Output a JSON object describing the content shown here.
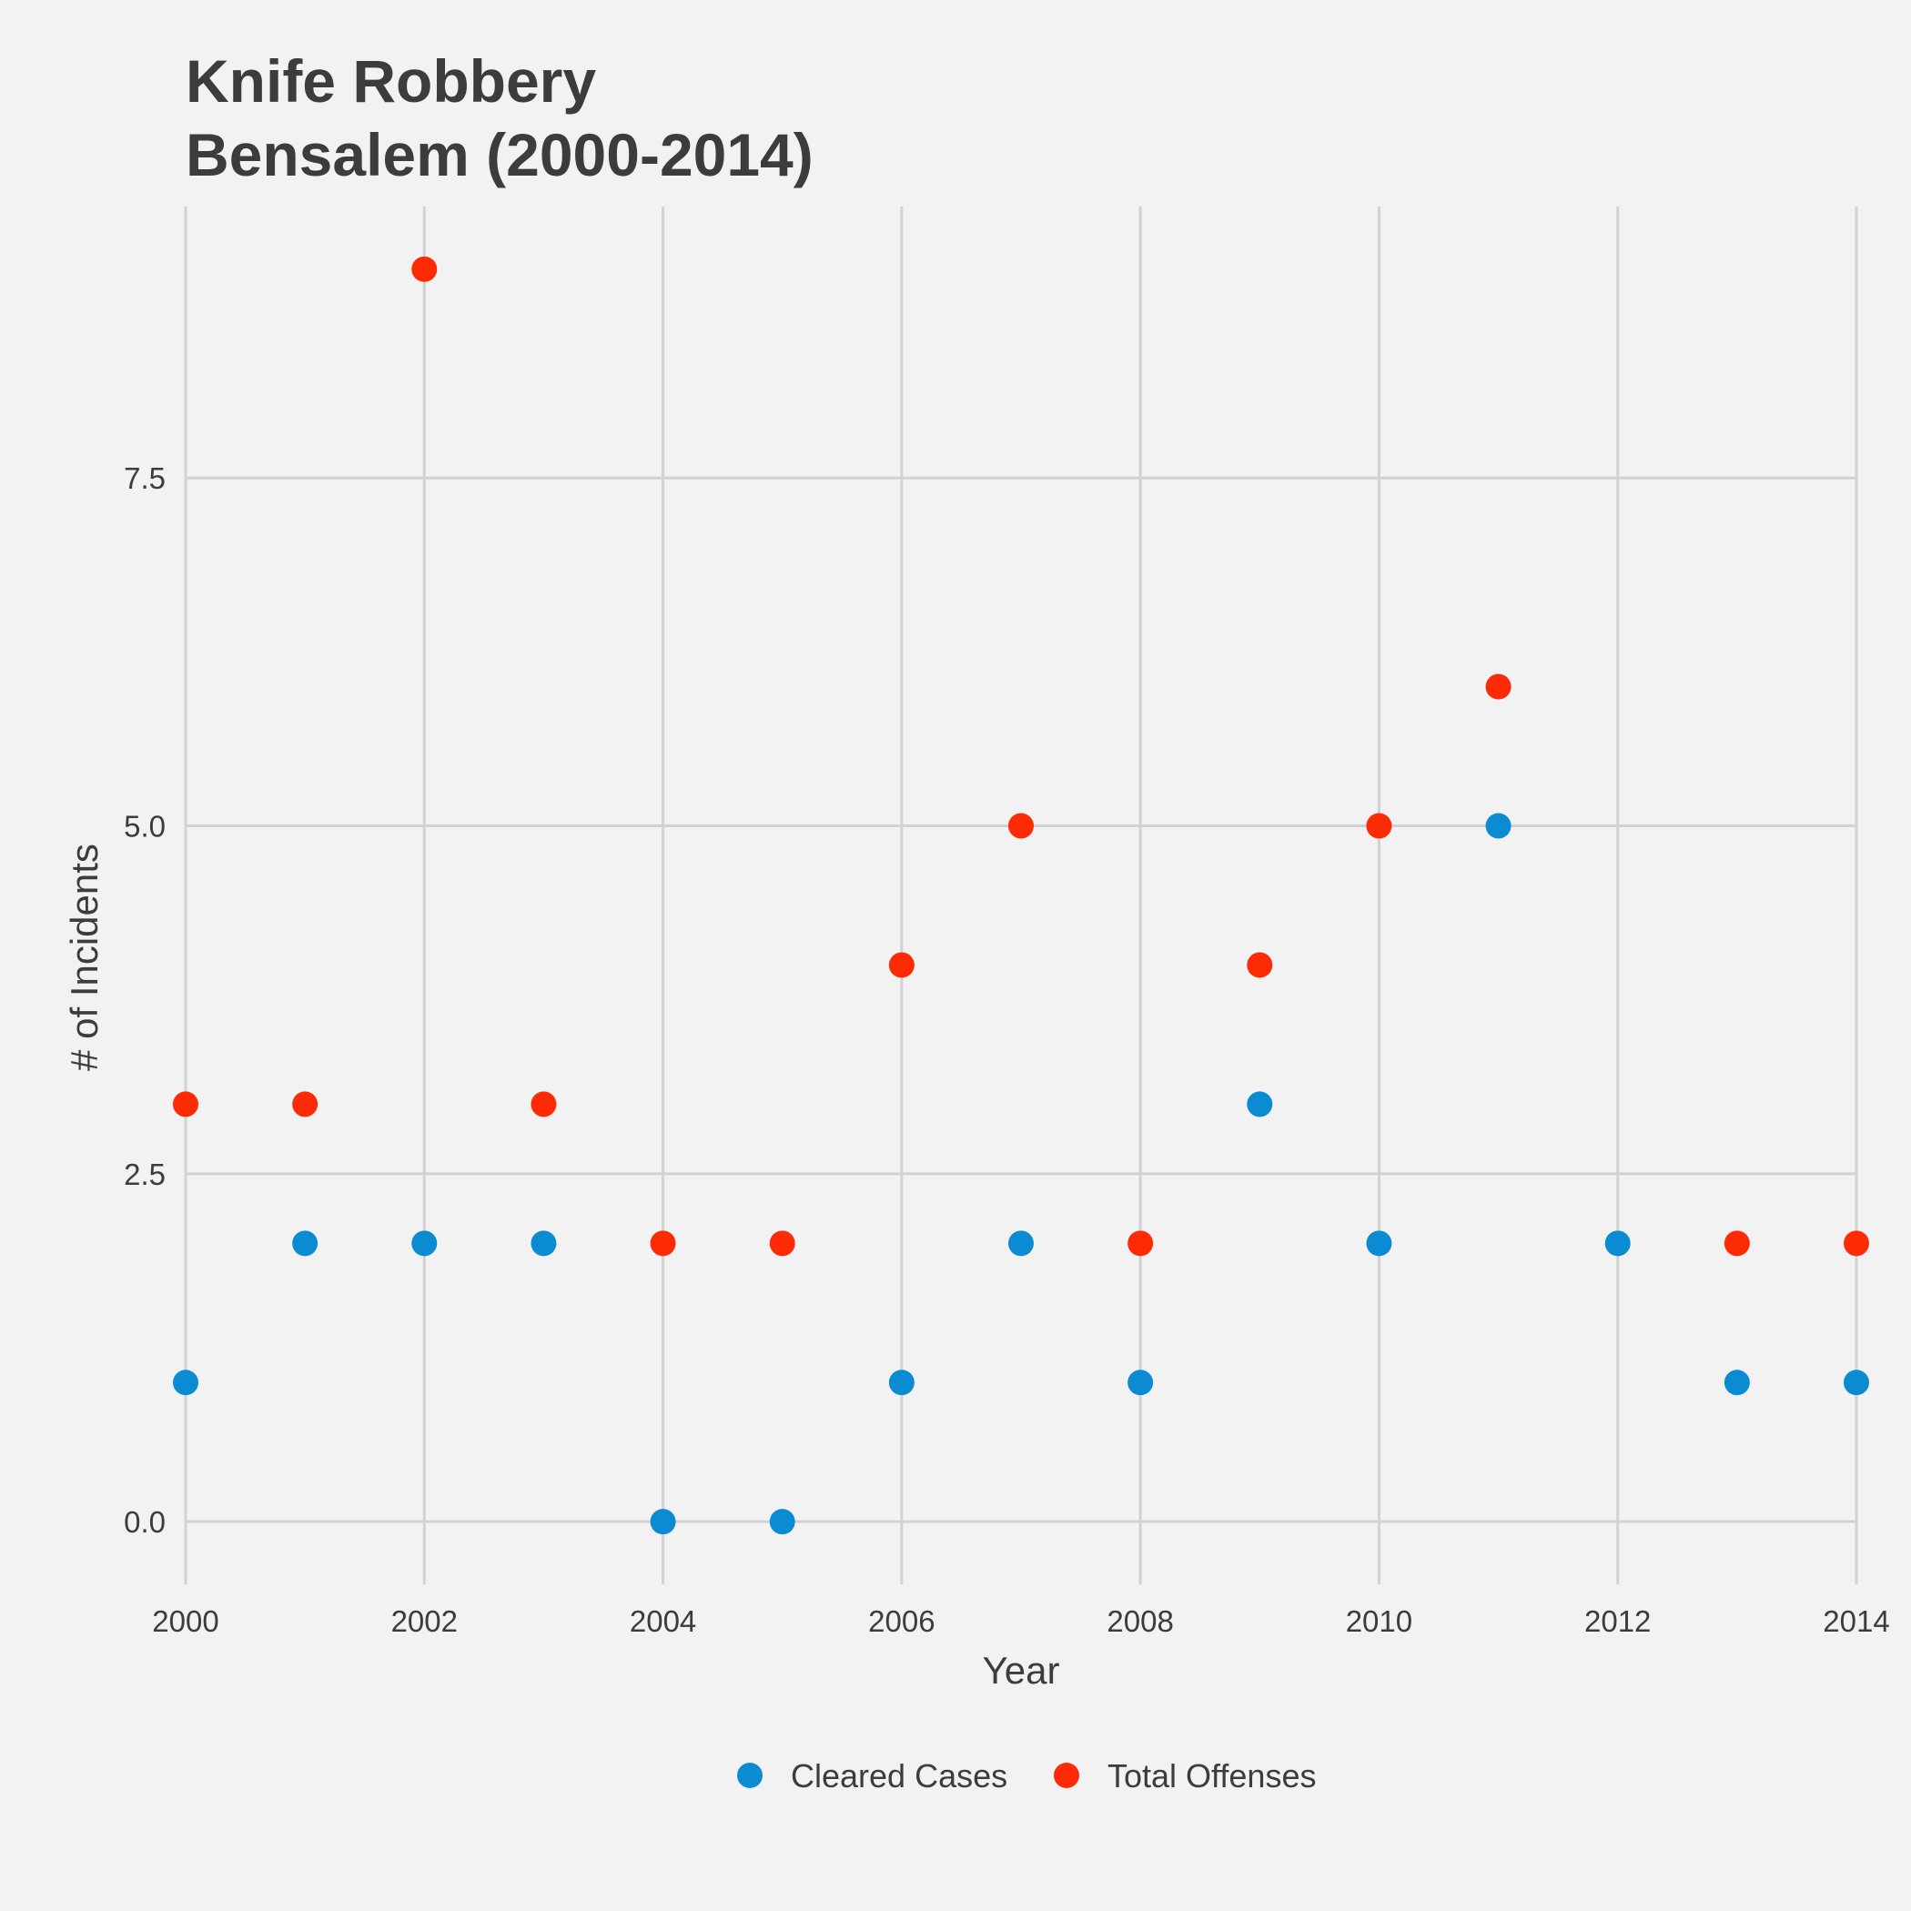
{
  "chart_data": {
    "type": "scatter",
    "title": [
      "Knife Robbery",
      "Bensalem (2000-2014)"
    ],
    "xlabel": "Year",
    "ylabel": "# of Incidents",
    "xlim": [
      2000,
      2014
    ],
    "ylim": [
      -0.45,
      9.45
    ],
    "x_ticks": [
      2000,
      2002,
      2004,
      2006,
      2008,
      2010,
      2012,
      2014
    ],
    "y_ticks": [
      0.0,
      2.5,
      5.0,
      7.5
    ],
    "y_tick_labels": [
      "0.0",
      "2.5",
      "5.0",
      "7.5"
    ],
    "grid": true,
    "legend_position": "bottom",
    "series": [
      {
        "name": "Cleared Cases",
        "color": "#0b8bd1",
        "points": [
          [
            2000,
            1
          ],
          [
            2001,
            2
          ],
          [
            2002,
            2
          ],
          [
            2003,
            2
          ],
          [
            2004,
            0
          ],
          [
            2005,
            0
          ],
          [
            2006,
            1
          ],
          [
            2007,
            2
          ],
          [
            2008,
            1
          ],
          [
            2009,
            3
          ],
          [
            2010,
            2
          ],
          [
            2011,
            5
          ],
          [
            2012,
            2
          ],
          [
            2013,
            1
          ],
          [
            2014,
            1
          ]
        ]
      },
      {
        "name": "Total Offenses",
        "color": "#fc2a05",
        "points": [
          [
            2000,
            3
          ],
          [
            2001,
            3
          ],
          [
            2002,
            9
          ],
          [
            2003,
            3
          ],
          [
            2004,
            2
          ],
          [
            2005,
            2
          ],
          [
            2006,
            4
          ],
          [
            2007,
            5
          ],
          [
            2008,
            2
          ],
          [
            2009,
            4
          ],
          [
            2010,
            5
          ],
          [
            2011,
            6
          ],
          [
            2013,
            2
          ],
          [
            2014,
            2
          ]
        ]
      }
    ]
  }
}
